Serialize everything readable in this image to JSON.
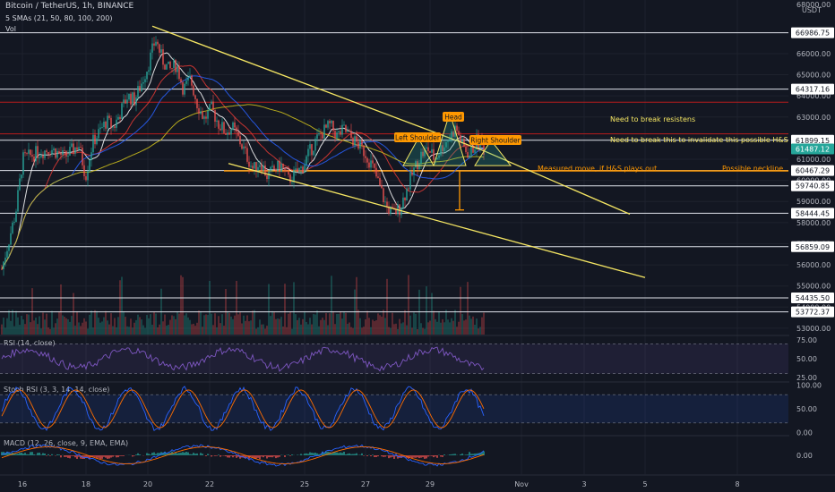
{
  "header": {
    "symbol_line": "Bitcoin / TetherUS, 1h, BINANCE",
    "sma_line": "5 SMAs (21, 50, 80, 100, 200)",
    "vol_line": "Vol",
    "currency": "USDT"
  },
  "chart_data": {
    "type": "candlestick",
    "symbol": "BTCUSDT",
    "interval": "1h",
    "exchange": "BINANCE",
    "x_ticks": [
      "16",
      "18",
      "20",
      "22",
      "25",
      "27",
      "29",
      "Nov",
      "3",
      "5",
      "8"
    ],
    "y_ticks": [
      53000,
      54000,
      55000,
      56000,
      57000,
      58000,
      59000,
      60000,
      61000,
      62000,
      63000,
      64000,
      65000,
      66000,
      67000
    ],
    "y_top_label": "68000.00",
    "ylim": [
      52700,
      68200
    ],
    "current_price": {
      "value": 61487.12,
      "label": "61487.12"
    },
    "levels": [
      {
        "value": 66986.75,
        "label": "66986.75"
      },
      {
        "value": 64317.16,
        "label": "64317.16"
      },
      {
        "value": 61899.15,
        "label": "61899.15"
      },
      {
        "value": 60467.29,
        "label": "60467.29"
      },
      {
        "value": 59740.85,
        "label": "59740.85"
      },
      {
        "value": 58444.45,
        "label": "58444.45"
      },
      {
        "value": 56859.09,
        "label": "56859.09"
      },
      {
        "value": 54435.5,
        "label": "54435.50"
      },
      {
        "value": 53772.37,
        "label": "53772.37"
      }
    ],
    "annotations": {
      "head": "Head",
      "left_shoulder": "Left Shoulder",
      "right_shoulder": "Right Shoulder",
      "resist": "Need to break resistens",
      "invalidate": "Need to break this to invalidate this possible H&S",
      "measured": "Measured move, if H&S plays out",
      "neckline": "Possible neckline"
    },
    "price_path": [
      [
        0,
        55800
      ],
      [
        0.04,
        58500
      ],
      [
        0.06,
        61000
      ],
      [
        0.1,
        61300
      ],
      [
        0.14,
        61500
      ],
      [
        0.18,
        61100
      ],
      [
        0.22,
        61700
      ],
      [
        0.24,
        60200
      ],
      [
        0.26,
        61800
      ],
      [
        0.3,
        62800
      ],
      [
        0.32,
        62500
      ],
      [
        0.36,
        64000
      ],
      [
        0.38,
        63800
      ],
      [
        0.4,
        64600
      ],
      [
        0.42,
        65500
      ],
      [
        0.44,
        66700
      ],
      [
        0.46,
        65700
      ],
      [
        0.48,
        65200
      ],
      [
        0.5,
        65500
      ],
      [
        0.52,
        64300
      ],
      [
        0.54,
        64800
      ],
      [
        0.56,
        63600
      ],
      [
        0.58,
        62900
      ],
      [
        0.6,
        63400
      ],
      [
        0.62,
        62700
      ],
      [
        0.64,
        62300
      ],
      [
        0.66,
        62500
      ],
      [
        0.68,
        61900
      ],
      [
        0.7,
        61200
      ],
      [
        0.72,
        60500
      ],
      [
        0.74,
        60900
      ],
      [
        0.76,
        60200
      ],
      [
        0.78,
        60500
      ],
      [
        0.8,
        60700
      ],
      [
        0.82,
        60000
      ],
      [
        0.84,
        60300
      ],
      [
        0.86,
        60600
      ],
      [
        0.88,
        61300
      ],
      [
        0.9,
        61900
      ],
      [
        0.92,
        62300
      ],
      [
        0.94,
        62600
      ],
      [
        0.96,
        62100
      ],
      [
        0.98,
        62400
      ],
      [
        1.0,
        62000
      ],
      [
        1.02,
        61700
      ],
      [
        1.04,
        61300
      ],
      [
        1.06,
        60700
      ],
      [
        1.08,
        59800
      ],
      [
        1.1,
        58800
      ],
      [
        1.12,
        58400
      ],
      [
        1.14,
        58700
      ],
      [
        1.16,
        59600
      ],
      [
        1.18,
        60500
      ],
      [
        1.2,
        61200
      ],
      [
        1.22,
        61500
      ],
      [
        1.24,
        61000
      ],
      [
        1.26,
        61600
      ],
      [
        1.28,
        62000
      ],
      [
        1.3,
        62500
      ],
      [
        1.32,
        61600
      ],
      [
        1.34,
        61200
      ],
      [
        1.36,
        61900
      ],
      [
        1.38,
        61487
      ]
    ],
    "rsi": {
      "label": "RSI (14, close)",
      "ticks": [
        75,
        50,
        25
      ]
    },
    "stoch_rsi": {
      "label": "Stoch RSI (3, 3, 14, 14, close)",
      "ticks": [
        100,
        50,
        0
      ]
    },
    "macd": {
      "label": "MACD (12, 26, close, 9, EMA, EMA)",
      "ticks": [
        0
      ]
    }
  }
}
